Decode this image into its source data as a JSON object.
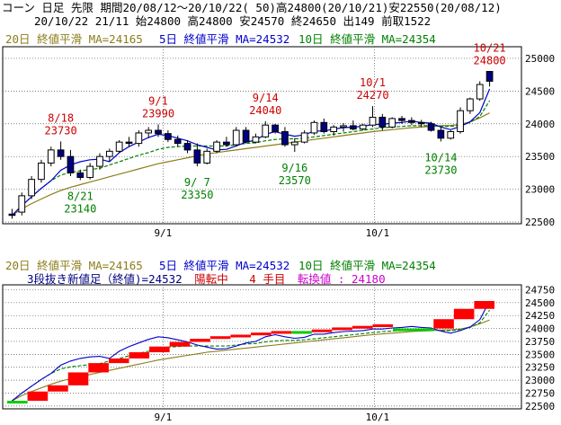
{
  "header": {
    "line1": "コーン 日足 先限 期間20/08/12～20/10/22( 50)高24800(20/10/21)安22550(20/08/12)",
    "line2": "20/10/22 21/11 始24800 高24800 安24570 終24650 出149 前取1522"
  },
  "top_legend": {
    "ma20": "20日 終値平滑 MA=24165",
    "ma5": "5日 終値平滑 MA=24532",
    "ma10": "10日 終値平滑 MA=24354"
  },
  "bottom_legend": {
    "ma20": "20日 終値平滑 MA=24165",
    "ma5": "5日 終値平滑 MA=24532",
    "ma10": "10日 終値平滑 MA=24354",
    "info_prefix": "3段抜き新値足（終値)=24532",
    "info_state": "陽転中",
    "info_count": "4 手目",
    "info_switch": "転換値 : 24180"
  },
  "colors": {
    "frame_bg": "#ffffff",
    "up_candle": "#ffffff",
    "down_candle": "#000080",
    "ma5": "#0000cc",
    "ma10": "#008000",
    "ma20": "#8b7d1a",
    "high_label": "#cc0000",
    "low_label": "#008000",
    "brick_up": "#ff0000",
    "brick_down": "#00cc00"
  },
  "chart_data": [
    {
      "type": "candlestick",
      "x_labels": [
        "9/1",
        "10/1"
      ],
      "ylim": [
        22500,
        25150
      ],
      "yticks": [
        22500,
        23000,
        23500,
        24000,
        24500,
        25000
      ],
      "candles": [
        [
          22620,
          22700,
          22550,
          22600
        ],
        [
          22650,
          22950,
          22600,
          22900
        ],
        [
          22900,
          23200,
          22850,
          23150
        ],
        [
          23150,
          23450,
          23100,
          23400
        ],
        [
          23400,
          23650,
          23350,
          23600
        ],
        [
          23600,
          23730,
          23450,
          23500
        ],
        [
          23500,
          23600,
          23200,
          23250
        ],
        [
          23250,
          23300,
          23140,
          23180
        ],
        [
          23180,
          23400,
          23150,
          23350
        ],
        [
          23350,
          23550,
          23300,
          23500
        ],
        [
          23500,
          23620,
          23420,
          23580
        ],
        [
          23580,
          23750,
          23550,
          23720
        ],
        [
          23720,
          23800,
          23650,
          23700
        ],
        [
          23700,
          23900,
          23650,
          23860
        ],
        [
          23860,
          23950,
          23780,
          23900
        ],
        [
          23900,
          23990,
          23800,
          23850
        ],
        [
          23850,
          23900,
          23720,
          23760
        ],
        [
          23760,
          23820,
          23650,
          23700
        ],
        [
          23700,
          23750,
          23550,
          23600
        ],
        [
          23600,
          23700,
          23350,
          23400
        ],
        [
          23400,
          23620,
          23380,
          23580
        ],
        [
          23580,
          23750,
          23550,
          23720
        ],
        [
          23720,
          23800,
          23650,
          23680
        ],
        [
          23680,
          23950,
          23650,
          23900
        ],
        [
          23900,
          23950,
          23700,
          23720
        ],
        [
          23720,
          23850,
          23700,
          23800
        ],
        [
          23800,
          24040,
          23780,
          23980
        ],
        [
          23980,
          24000,
          23850,
          23880
        ],
        [
          23880,
          23950,
          23650,
          23680
        ],
        [
          23680,
          23780,
          23570,
          23720
        ],
        [
          23720,
          23900,
          23700,
          23860
        ],
        [
          23860,
          24050,
          23830,
          24020
        ],
        [
          24020,
          24080,
          23850,
          23880
        ],
        [
          23880,
          23980,
          23820,
          23950
        ],
        [
          23950,
          24010,
          23880,
          23970
        ],
        [
          23970,
          24050,
          23900,
          23920
        ],
        [
          23920,
          24000,
          23900,
          23980
        ],
        [
          23980,
          24270,
          23950,
          24100
        ],
        [
          24100,
          24150,
          23900,
          23950
        ],
        [
          23950,
          24100,
          23930,
          24080
        ],
        [
          24080,
          24120,
          24000,
          24050
        ],
        [
          24050,
          24100,
          23980,
          24020
        ],
        [
          24020,
          24060,
          23950,
          24000
        ],
        [
          24000,
          24030,
          23880,
          23900
        ],
        [
          23900,
          23950,
          23730,
          23780
        ],
        [
          23780,
          23900,
          23760,
          23880
        ],
        [
          23880,
          24250,
          23850,
          24200
        ],
        [
          24200,
          24400,
          24150,
          24380
        ],
        [
          24380,
          24650,
          24350,
          24600
        ],
        [
          24800,
          24800,
          24570,
          24650
        ]
      ],
      "ma5": [
        22600,
        22750,
        22883,
        23013,
        23130,
        23290,
        23370,
        23420,
        23450,
        23460,
        23420,
        23560,
        23650,
        23720,
        23790,
        23840,
        23820,
        23780,
        23740,
        23680,
        23640,
        23600,
        23610,
        23660,
        23720,
        23750,
        23840,
        23880,
        23840,
        23810,
        23830,
        23890,
        23890,
        23920,
        23940,
        23950,
        23960,
        23990,
        23990,
        24010,
        24020,
        24040,
        24020,
        24010,
        23950,
        23910,
        23960,
        24030,
        24170,
        24532
      ],
      "ma10": [
        22600,
        22750,
        22883,
        23013,
        23130,
        23217,
        23257,
        23280,
        23300,
        23320,
        23370,
        23420,
        23470,
        23520,
        23560,
        23610,
        23640,
        23650,
        23660,
        23660,
        23660,
        23660,
        23660,
        23680,
        23700,
        23710,
        23740,
        23760,
        23770,
        23770,
        23780,
        23800,
        23820,
        23840,
        23860,
        23880,
        23900,
        23920,
        23940,
        23950,
        23960,
        23970,
        23970,
        23970,
        23960,
        23960,
        23980,
        24020,
        24110,
        24354
      ],
      "ma20": [
        22600,
        22700,
        22780,
        22850,
        22920,
        22980,
        23030,
        23070,
        23110,
        23150,
        23190,
        23230,
        23270,
        23310,
        23350,
        23390,
        23420,
        23450,
        23480,
        23510,
        23540,
        23560,
        23580,
        23600,
        23620,
        23640,
        23660,
        23680,
        23700,
        23720,
        23740,
        23760,
        23780,
        23800,
        23820,
        23840,
        23860,
        23880,
        23895,
        23910,
        23925,
        23940,
        23950,
        23960,
        23970,
        23975,
        23990,
        24030,
        24090,
        24165
      ],
      "annotations": [
        {
          "text": "8/18",
          "index": 5,
          "kind": "high"
        },
        {
          "text": "23730",
          "index": 5,
          "kind": "high"
        },
        {
          "text": "9/1",
          "index": 15,
          "kind": "high"
        },
        {
          "text": "23990",
          "index": 15,
          "kind": "high"
        },
        {
          "text": "9/14",
          "index": 26,
          "kind": "high"
        },
        {
          "text": "24040",
          "index": 26,
          "kind": "high"
        },
        {
          "text": "10/1",
          "index": 37,
          "kind": "high"
        },
        {
          "text": "24270",
          "index": 37,
          "kind": "high"
        },
        {
          "text": "10/21",
          "index": 49,
          "kind": "high"
        },
        {
          "text": "24800",
          "index": 49,
          "kind": "high"
        },
        {
          "text": "8/21",
          "index": 7,
          "kind": "low"
        },
        {
          "text": "23140",
          "index": 7,
          "kind": "low"
        },
        {
          "text": "9/ 7",
          "index": 19,
          "kind": "low"
        },
        {
          "text": "23350",
          "index": 19,
          "kind": "low"
        },
        {
          "text": "9/16",
          "index": 29,
          "kind": "low"
        },
        {
          "text": "23570",
          "index": 29,
          "kind": "low"
        },
        {
          "text": "10/14",
          "index": 44,
          "kind": "low"
        },
        {
          "text": "23730",
          "index": 44,
          "kind": "low"
        }
      ]
    },
    {
      "type": "bar",
      "subtype": "three-line-break",
      "x_labels": [
        "9/1",
        "10/1"
      ],
      "ylim": [
        22480,
        24810
      ],
      "yticks": [
        22500,
        22750,
        23000,
        23250,
        23500,
        23750,
        24000,
        24250,
        24500,
        24750
      ],
      "bricks": [
        [
          22550,
          22600,
          "down"
        ],
        [
          22600,
          22780,
          "up"
        ],
        [
          22780,
          22900,
          "up"
        ],
        [
          22900,
          23150,
          "up"
        ],
        [
          23150,
          23330,
          "up"
        ],
        [
          23330,
          23420,
          "up"
        ],
        [
          23420,
          23540,
          "up"
        ],
        [
          23540,
          23650,
          "up"
        ],
        [
          23650,
          23740,
          "up"
        ],
        [
          23740,
          23800,
          "up"
        ],
        [
          23800,
          23850,
          "up"
        ],
        [
          23850,
          23880,
          "up"
        ],
        [
          23880,
          23920,
          "up"
        ],
        [
          23920,
          23950,
          "up"
        ],
        [
          23920,
          23950,
          "down"
        ],
        [
          23950,
          23980,
          "up"
        ],
        [
          23980,
          24020,
          "up"
        ],
        [
          24020,
          24050,
          "up"
        ],
        [
          24050,
          24080,
          "up"
        ],
        [
          23960,
          24000,
          "down"
        ],
        [
          23960,
          24000,
          "down"
        ],
        [
          24000,
          24180,
          "up"
        ],
        [
          24180,
          24380,
          "up"
        ],
        [
          24380,
          24532,
          "up"
        ]
      ]
    }
  ]
}
